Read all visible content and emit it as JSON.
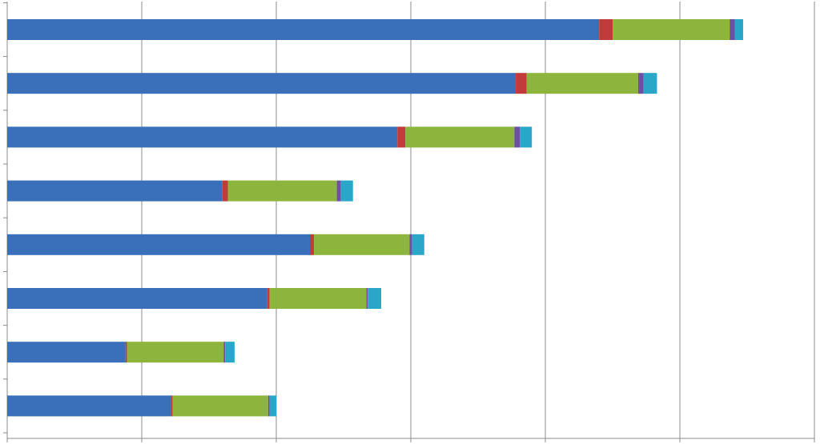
{
  "chart_data": {
    "type": "bar",
    "orientation": "horizontal",
    "stacked": true,
    "title": "",
    "xlabel": "",
    "ylabel": "",
    "xlim": [
      0,
      6
    ],
    "grid": true,
    "legend": "none",
    "series": [
      {
        "values": [
          4.4,
          3.78,
          2.9,
          1.6,
          2.25,
          1.93,
          0.88,
          1.22
        ]
      },
      {
        "values": [
          0.1,
          0.08,
          0.06,
          0.04,
          0.03,
          0.02,
          0.01,
          0.01
        ]
      },
      {
        "values": [
          0.87,
          0.83,
          0.81,
          0.81,
          0.71,
          0.72,
          0.72,
          0.71
        ]
      },
      {
        "values": [
          0.04,
          0.04,
          0.04,
          0.03,
          0.02,
          0.01,
          0.01,
          0.01
        ]
      },
      {
        "values": [
          0.06,
          0.1,
          0.09,
          0.09,
          0.09,
          0.1,
          0.07,
          0.05
        ]
      }
    ],
    "colors": [
      "#3a6fba",
      "#c23b3b",
      "#8db53e",
      "#6d4fa6",
      "#2aa6c8"
    ]
  }
}
